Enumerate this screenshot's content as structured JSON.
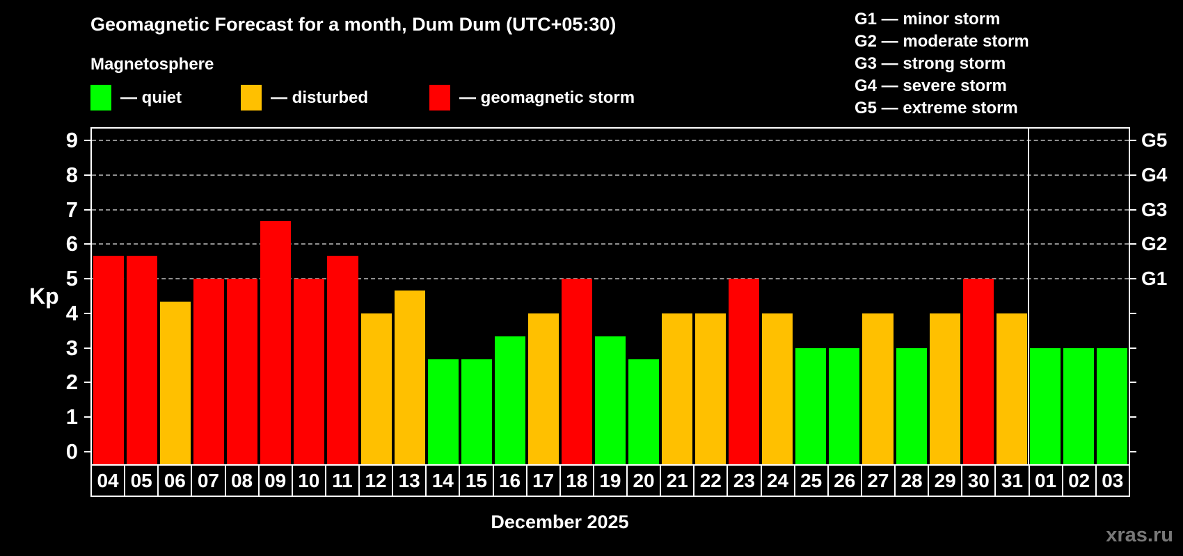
{
  "header": {
    "title": "Geomagnetic Forecast for a month, Dum Dum (UTC+05:30)",
    "subtitle": "Magnetosphere"
  },
  "legend": {
    "items": [
      {
        "status": "quiet",
        "label": "— quiet"
      },
      {
        "status": "disturbed",
        "label": "— disturbed"
      },
      {
        "status": "storm",
        "label": "— geomagnetic storm"
      }
    ]
  },
  "g_legend": [
    "G1 — minor storm",
    "G2 — moderate storm",
    "G3 — strong storm",
    "G4 — severe storm",
    "G5 — extreme storm"
  ],
  "colors": {
    "quiet": "#00ff00",
    "disturbed": "#ffc000",
    "storm": "#ff0000",
    "grid": "#aaaaaa",
    "axis": "#ffffff",
    "background": "#000000",
    "watermark": "#787878"
  },
  "axis": {
    "ylabel": "Kp"
  },
  "footer": {
    "month_label": "December 2025",
    "watermark": "xras.ru"
  },
  "chart_data": {
    "type": "bar",
    "title": "Geomagnetic Forecast for a month, Dum Dum (UTC+05:30)",
    "xlabel": "December 2025",
    "ylabel": "Kp",
    "ylim": [
      -0.36,
      9.38
    ],
    "yticks": [
      0,
      1,
      2,
      3,
      4,
      5,
      6,
      7,
      8,
      9
    ],
    "gridlines_at": [
      5,
      6,
      7,
      8,
      9
    ],
    "grid": "horizontal dashed lines only at Kp 5-9 (G-storm levels)",
    "legend_position": "top-left (quiet/disturbed/storm), top-right (G1-G5 scale)",
    "right_axis": [
      {
        "label": "G1",
        "value": 5
      },
      {
        "label": "G2",
        "value": 6
      },
      {
        "label": "G3",
        "value": 7
      },
      {
        "label": "G4",
        "value": 8
      },
      {
        "label": "G5",
        "value": 9
      }
    ],
    "month_divider_after_label": "31",
    "days": [
      {
        "label": "04",
        "value": 5.67,
        "status": "storm"
      },
      {
        "label": "05",
        "value": 5.67,
        "status": "storm"
      },
      {
        "label": "06",
        "value": 4.33,
        "status": "disturbed"
      },
      {
        "label": "07",
        "value": 5.0,
        "status": "storm"
      },
      {
        "label": "08",
        "value": 5.0,
        "status": "storm"
      },
      {
        "label": "09",
        "value": 6.67,
        "status": "storm"
      },
      {
        "label": "10",
        "value": 5.0,
        "status": "storm"
      },
      {
        "label": "11",
        "value": 5.67,
        "status": "storm"
      },
      {
        "label": "12",
        "value": 4.0,
        "status": "disturbed"
      },
      {
        "label": "13",
        "value": 4.67,
        "status": "disturbed"
      },
      {
        "label": "14",
        "value": 2.67,
        "status": "quiet"
      },
      {
        "label": "15",
        "value": 2.67,
        "status": "quiet"
      },
      {
        "label": "16",
        "value": 3.33,
        "status": "quiet"
      },
      {
        "label": "17",
        "value": 4.0,
        "status": "disturbed"
      },
      {
        "label": "18",
        "value": 5.0,
        "status": "storm"
      },
      {
        "label": "19",
        "value": 3.33,
        "status": "quiet"
      },
      {
        "label": "20",
        "value": 2.67,
        "status": "quiet"
      },
      {
        "label": "21",
        "value": 4.0,
        "status": "disturbed"
      },
      {
        "label": "22",
        "value": 4.0,
        "status": "disturbed"
      },
      {
        "label": "23",
        "value": 5.0,
        "status": "storm"
      },
      {
        "label": "24",
        "value": 4.0,
        "status": "disturbed"
      },
      {
        "label": "25",
        "value": 3.0,
        "status": "quiet"
      },
      {
        "label": "26",
        "value": 3.0,
        "status": "quiet"
      },
      {
        "label": "27",
        "value": 4.0,
        "status": "disturbed"
      },
      {
        "label": "28",
        "value": 3.0,
        "status": "quiet"
      },
      {
        "label": "29",
        "value": 4.0,
        "status": "disturbed"
      },
      {
        "label": "30",
        "value": 5.0,
        "status": "storm"
      },
      {
        "label": "31",
        "value": 4.0,
        "status": "disturbed"
      },
      {
        "label": "01",
        "value": 3.0,
        "status": "quiet"
      },
      {
        "label": "02",
        "value": 3.0,
        "status": "quiet"
      },
      {
        "label": "03",
        "value": 3.0,
        "status": "quiet"
      }
    ]
  }
}
